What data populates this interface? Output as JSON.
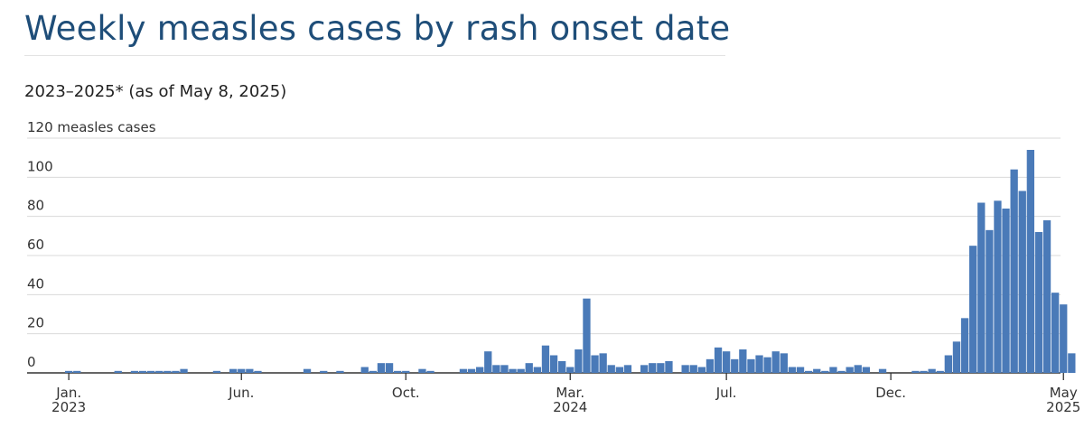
{
  "header": {
    "title": "Weekly measles cases by rash onset date",
    "subtitle": "2023–2025* (as of May 8, 2025)"
  },
  "colors": {
    "bar": "#4a7ab8",
    "grid": "#d9d9d9",
    "axis": "#333333",
    "title": "#1f4e79"
  },
  "chart_data": {
    "type": "bar",
    "ylabel": "measles cases",
    "ylim": [
      0,
      120
    ],
    "yticks": [
      0,
      20,
      40,
      60,
      80,
      100,
      120
    ],
    "grid": true,
    "x_tick_labels": [
      {
        "week": 0,
        "line1": "Jan.",
        "line2": "2023"
      },
      {
        "week": 21,
        "line1": "Jun.",
        "line2": ""
      },
      {
        "week": 41,
        "line1": "Oct.",
        "line2": ""
      },
      {
        "week": 61,
        "line1": "Mar.",
        "line2": "2024"
      },
      {
        "week": 80,
        "line1": "Jul.",
        "line2": ""
      },
      {
        "week": 100,
        "line1": "Dec.",
        "line2": ""
      },
      {
        "week": 121,
        "line1": "May",
        "line2": "2025"
      }
    ],
    "values": [
      1,
      1,
      0,
      0,
      0,
      0,
      1,
      0,
      1,
      1,
      1,
      1,
      1,
      1,
      2,
      0,
      0,
      0,
      1,
      0,
      2,
      2,
      2,
      1,
      0,
      0,
      0,
      0,
      0,
      2,
      0,
      1,
      0,
      1,
      0,
      0,
      3,
      1,
      5,
      5,
      1,
      1,
      0,
      2,
      1,
      0,
      0,
      0,
      2,
      2,
      3,
      11,
      4,
      4,
      2,
      2,
      5,
      3,
      14,
      9,
      6,
      3,
      12,
      38,
      9,
      10,
      4,
      3,
      4,
      0,
      4,
      5,
      5,
      6,
      0,
      4,
      4,
      3,
      7,
      13,
      11,
      7,
      12,
      7,
      9,
      8,
      11,
      10,
      3,
      3,
      1,
      2,
      1,
      3,
      1,
      3,
      4,
      3,
      0,
      2,
      0,
      0,
      0,
      1,
      1,
      2,
      1,
      9,
      16,
      28,
      65,
      87,
      73,
      88,
      84,
      104,
      93,
      114,
      72,
      78,
      41,
      35,
      10
    ]
  }
}
